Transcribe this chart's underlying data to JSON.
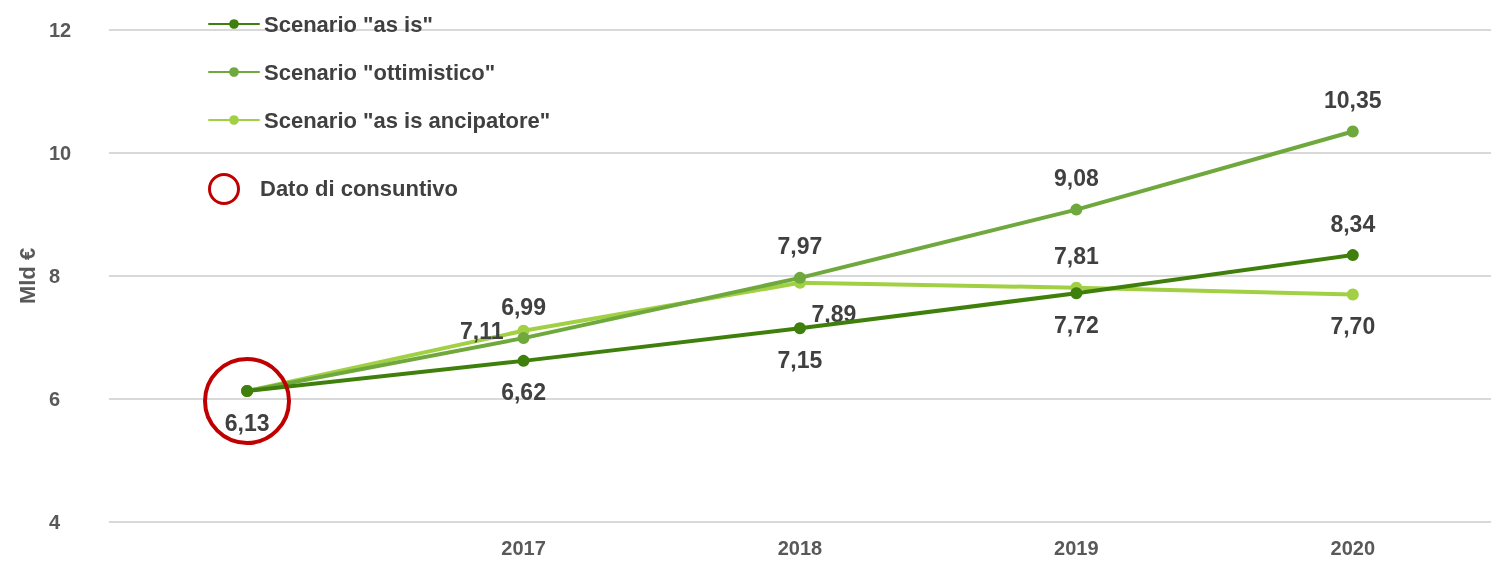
{
  "chart_data": {
    "type": "line",
    "ylabel": "Mld €",
    "categories": [
      null,
      "2017",
      "2018",
      "2019",
      "2020"
    ],
    "series": [
      {
        "name": "Scenario \"as is\"",
        "color": "#3f7f0b",
        "values": [
          6.13,
          6.62,
          7.15,
          7.72,
          8.34
        ],
        "value_labels": [
          "6,13",
          "6,62",
          "7,15",
          "7,72",
          "8,34"
        ]
      },
      {
        "name": "Scenario \"ottimistico\"",
        "color": "#6fa83c",
        "values": [
          6.13,
          6.99,
          7.97,
          9.08,
          10.35
        ],
        "value_labels": [
          null,
          "6,99",
          "7,97",
          "9,08",
          "10,35"
        ]
      },
      {
        "name": "Scenario \"as is ancipatore\"",
        "color": "#a2d044",
        "values": [
          6.13,
          7.11,
          7.89,
          7.81,
          7.7
        ],
        "value_labels": [
          null,
          "7,11",
          "7,89",
          "7,81",
          "7,70"
        ]
      }
    ],
    "annotations": [
      "Dato di consuntivo"
    ],
    "ylim": [
      4,
      12
    ],
    "yticks": [
      4,
      6,
      8,
      10,
      12
    ],
    "grid": "y",
    "legend": "top left",
    "marker": "circle",
    "line_style": "solid"
  }
}
